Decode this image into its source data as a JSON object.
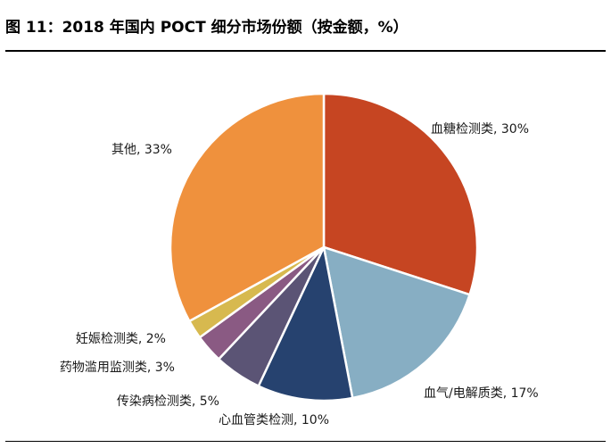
{
  "figure": {
    "title": "图 11：2018 年国内 POCT 细分市场份额（按金额，%）"
  },
  "chart_data": {
    "type": "pie",
    "title": "图 11：2018 年国内 POCT 细分市场份额（按金额，%）",
    "unit": "%",
    "start": "12 o'clock, clockwise",
    "slices": [
      {
        "name": "血糖检测类",
        "value": 30,
        "label": "血糖检测类, 30%",
        "color": "#c64522"
      },
      {
        "name": "血气/电解质类",
        "value": 17,
        "label": "血气/电解质类, 17%",
        "color": "#87aec3"
      },
      {
        "name": "心血管类检测",
        "value": 10,
        "label": "心血管类检测, 10%",
        "color": "#26426f"
      },
      {
        "name": "传染病检测类",
        "value": 5,
        "label": "传染病检测类, 5%",
        "color": "#5b5475"
      },
      {
        "name": "药物滥用监测类",
        "value": 3,
        "label": "药物滥用监测类, 3%",
        "color": "#8a5a83"
      },
      {
        "name": "妊娠检测类",
        "value": 2,
        "label": "妊娠检测类, 2%",
        "color": "#d7b94f"
      },
      {
        "name": "其他",
        "value": 33,
        "label": "其他, 33%",
        "color": "#ef913d"
      }
    ]
  }
}
